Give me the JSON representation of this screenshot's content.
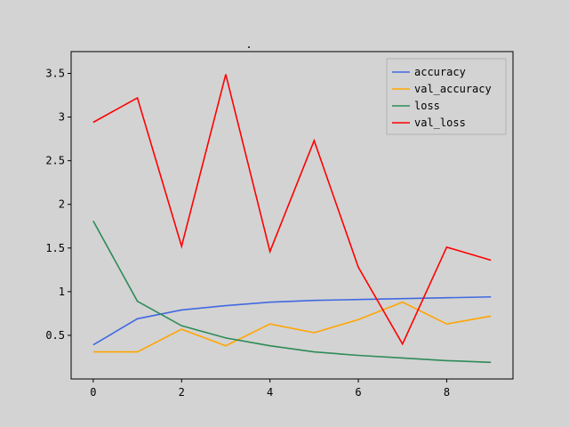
{
  "chart_data": {
    "type": "line",
    "title": ".",
    "xlabel": "",
    "ylabel": "",
    "x": [
      0,
      1,
      2,
      3,
      4,
      5,
      6,
      7,
      8,
      9
    ],
    "xlim": [
      -0.5,
      9.5
    ],
    "ylim": [
      0.0,
      3.75
    ],
    "xticks": [
      0,
      2,
      4,
      6,
      8
    ],
    "xtick_labels": [
      "0",
      "2",
      "4",
      "6",
      "8"
    ],
    "yticks": [
      0.5,
      1,
      1.5,
      2,
      2.5,
      3,
      3.5
    ],
    "ytick_labels": [
      "0.5",
      "1",
      "1.5",
      "2",
      "2.5",
      "3",
      "3.5"
    ],
    "grid": false,
    "legend_position": "top-right",
    "series": [
      {
        "name": "accuracy",
        "color": "#4169e1",
        "values": [
          0.39,
          0.69,
          0.79,
          0.84,
          0.88,
          0.9,
          0.91,
          0.92,
          0.93,
          0.94
        ]
      },
      {
        "name": "val_accuracy",
        "color": "#ffa500",
        "values": [
          0.31,
          0.31,
          0.57,
          0.38,
          0.63,
          0.53,
          0.68,
          0.88,
          0.63,
          0.72
        ]
      },
      {
        "name": "loss",
        "color": "#2e8b57",
        "values": [
          1.81,
          0.89,
          0.61,
          0.47,
          0.38,
          0.31,
          0.27,
          0.24,
          0.21,
          0.19
        ]
      },
      {
        "name": "val_loss",
        "color": "#ff0000",
        "values": [
          2.94,
          3.22,
          1.52,
          3.49,
          1.46,
          2.73,
          1.28,
          0.4,
          1.51,
          1.36
        ]
      }
    ]
  }
}
